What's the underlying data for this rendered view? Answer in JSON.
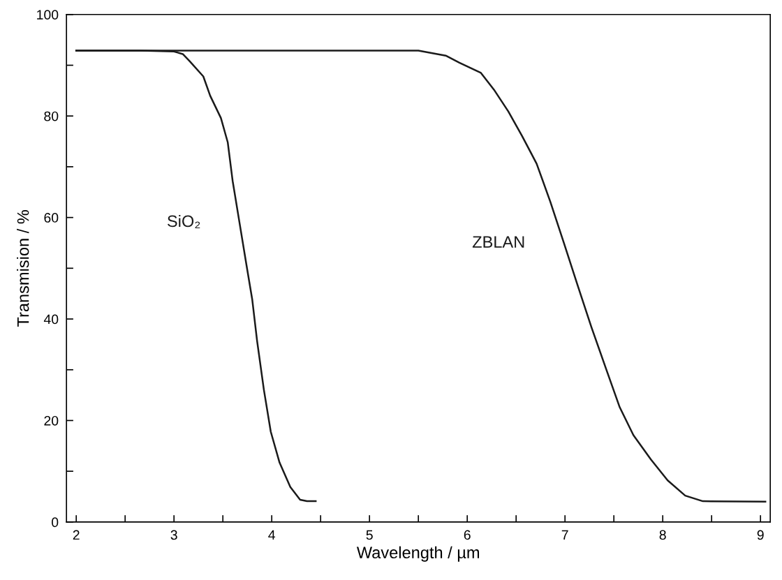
{
  "chart_data": {
    "type": "line",
    "xlabel": "Wavelength / µm",
    "ylabel": "Transmision / %",
    "xlim": [
      1.9,
      9.1
    ],
    "ylim": [
      0,
      100
    ],
    "xticks": [
      2,
      {
        "value": 2.5,
        "label": null
      },
      3,
      {
        "value": 3.5,
        "label": null
      },
      4,
      {
        "value": 4.5,
        "label": null
      },
      5,
      {
        "value": 5.5,
        "label": null
      },
      6,
      {
        "value": 6.5,
        "label": null
      },
      7,
      {
        "value": 7.5,
        "label": null
      },
      8,
      {
        "value": 8.5,
        "label": null
      },
      9
    ],
    "yticks": [
      0,
      {
        "value": 10,
        "label": null
      },
      20,
      {
        "value": 30,
        "label": null
      },
      40,
      {
        "value": 50,
        "label": null
      },
      60,
      {
        "value": 70,
        "label": null
      },
      80,
      {
        "value": 90,
        "label": null
      },
      100
    ],
    "grid": false,
    "legend": false,
    "marker": "none",
    "line_style": "solid",
    "series": [
      {
        "name": "SiO₂",
        "color": "#1a1a1a",
        "x": [
          2.0,
          2.66,
          3.0,
          3.09,
          3.16,
          3.3,
          3.37,
          3.48,
          3.55,
          3.6,
          3.67,
          3.74,
          3.8,
          3.85,
          3.92,
          3.99,
          4.08,
          4.19,
          4.29,
          4.36,
          4.45
        ],
        "values": [
          92.9,
          92.9,
          92.7,
          92.2,
          90.8,
          87.8,
          84,
          79.6,
          74.8,
          67.2,
          59,
          50.8,
          43.9,
          35.7,
          26,
          17.8,
          11.7,
          6.9,
          4.4,
          4.1,
          4.1
        ]
      },
      {
        "name": "ZBLAN",
        "color": "#1a1a1a",
        "x": [
          2.0,
          3.9,
          5.5,
          5.78,
          5.92,
          6.14,
          6.28,
          6.42,
          6.56,
          6.71,
          6.85,
          6.99,
          7.13,
          7.27,
          7.42,
          7.56,
          7.7,
          7.88,
          8.05,
          8.23,
          8.41,
          9.05
        ],
        "values": [
          92.9,
          92.9,
          92.9,
          91.9,
          90.5,
          88.5,
          85,
          80.9,
          76.1,
          70.6,
          63.1,
          54.9,
          46.6,
          38.4,
          30.2,
          22.6,
          17.1,
          12.3,
          8.2,
          5.2,
          4.1,
          4.0
        ]
      }
    ]
  }
}
